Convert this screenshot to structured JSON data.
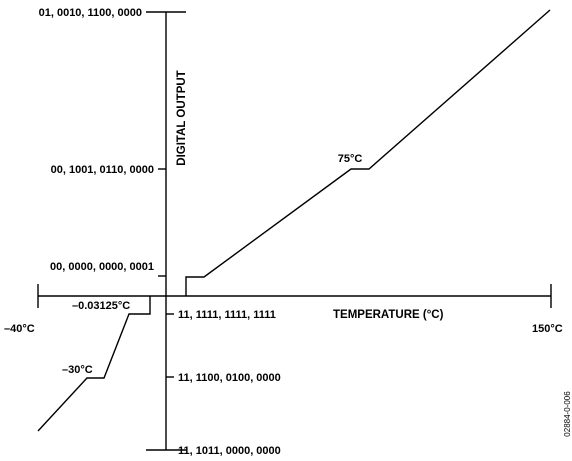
{
  "diagram": {
    "output_ticks": [
      {
        "label": "01, 0010, 1100, 0000",
        "value": 1600
      },
      {
        "label": "00, 1001, 0110, 0000",
        "value": 600
      },
      {
        "label": "00, 0000, 0000, 0001",
        "value": 1
      },
      {
        "label": "11, 1111, 1111, 1111",
        "value": -1
      },
      {
        "label": "11, 1100, 0100, 0000",
        "value": -480
      },
      {
        "label": "11, 1011, 0000, 0000",
        "value": -1280
      }
    ],
    "temperature_labels": {
      "min": "–40°C",
      "max": "150°C",
      "point_75": "75°C",
      "point_neg30": "–30°C",
      "point_neg003125": "–0.03125°C"
    },
    "axis_titles": {
      "x": "TEMPERATURE (°C)",
      "y": "DIGITAL OUTPUT"
    },
    "figure_id": "02884-0-006",
    "line_color": "#000000"
  }
}
